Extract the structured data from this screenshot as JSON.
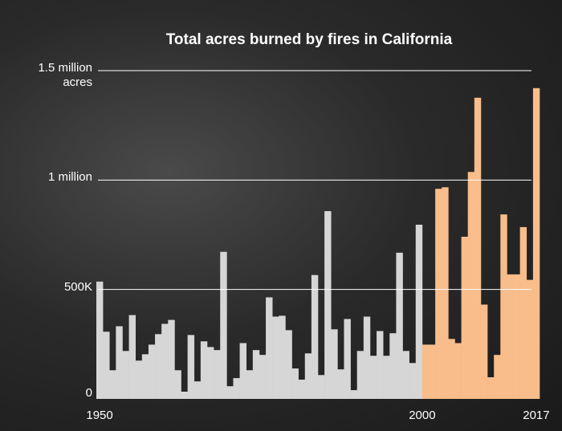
{
  "chart_data": {
    "type": "bar",
    "title": "Total acres burned by fires in California",
    "x": [
      1950,
      1951,
      1952,
      1953,
      1954,
      1955,
      1956,
      1957,
      1958,
      1959,
      1960,
      1961,
      1962,
      1963,
      1964,
      1965,
      1966,
      1967,
      1968,
      1969,
      1970,
      1971,
      1972,
      1973,
      1974,
      1975,
      1976,
      1977,
      1978,
      1979,
      1980,
      1981,
      1982,
      1983,
      1984,
      1985,
      1986,
      1987,
      1988,
      1989,
      1990,
      1991,
      1992,
      1993,
      1994,
      1995,
      1996,
      1997,
      1998,
      1999,
      2000,
      2001,
      2002,
      2003,
      2004,
      2005,
      2006,
      2007,
      2008,
      2009,
      2010,
      2011,
      2012,
      2013,
      2014,
      2015,
      2016,
      2017
    ],
    "values": [
      536,
      307,
      131,
      332,
      219,
      383,
      175,
      204,
      248,
      296,
      343,
      361,
      131,
      33,
      292,
      80,
      263,
      237,
      223,
      672,
      58,
      95,
      255,
      131,
      223,
      201,
      464,
      376,
      380,
      314,
      139,
      88,
      208,
      566,
      109,
      858,
      318,
      135,
      365,
      40,
      219,
      376,
      197,
      310,
      197,
      300,
      668,
      219,
      164,
      796,
      248,
      248,
      960,
      967,
      274,
      255,
      741,
      1037,
      1376,
      431,
      99,
      201,
      843,
      569,
      569,
      785,
      544,
      1420
    ],
    "color": "#d6d6d6",
    "highlight_color": "#f8bd8a",
    "highlight_start": 2000,
    "xlim": [
      1949.5,
      2017.5
    ],
    "xticks": [
      1950,
      2000,
      2017
    ],
    "ylim": [
      0,
      1500
    ],
    "yticks": [
      {
        "value": 0,
        "label": "0"
      },
      {
        "value": 500,
        "label": "500K"
      },
      {
        "value": 1000,
        "label": "1 million"
      },
      {
        "value": 1500,
        "label": "1.5 million acres"
      }
    ],
    "grid": true
  }
}
